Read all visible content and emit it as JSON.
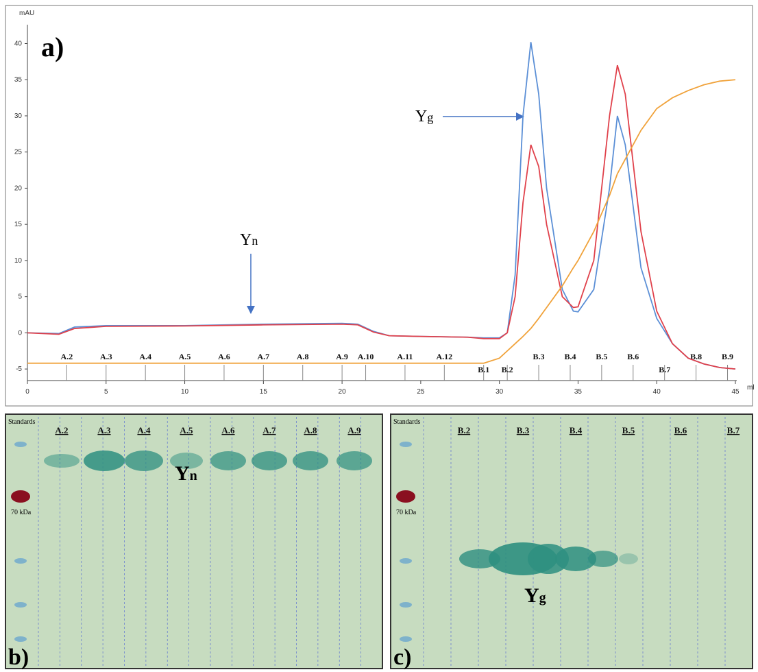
{
  "chart_data": {
    "type": "line",
    "panel_label": "a)",
    "y_unit": "mAU",
    "x_unit": "ml",
    "x": [
      0,
      2,
      3,
      5,
      10,
      15,
      20,
      21,
      22,
      23,
      25,
      28,
      29,
      30,
      30.5,
      31,
      31.5,
      32,
      32.5,
      33,
      34,
      34.7,
      35,
      36,
      37,
      37.5,
      38,
      39,
      40,
      41,
      42,
      43,
      44,
      45
    ],
    "series": [
      {
        "color": "#5b8fd6",
        "values": [
          0,
          -0.1,
          0.8,
          1,
          1,
          1.2,
          1.3,
          1.2,
          0.2,
          -0.4,
          -0.5,
          -0.6,
          -0.7,
          -0.7,
          0,
          8,
          30,
          40.2,
          33,
          20,
          6,
          3,
          2.9,
          6,
          20,
          30,
          26,
          9,
          2,
          -1.5,
          -3.5,
          -4.3,
          -4.8,
          -5
        ]
      },
      {
        "color": "#e0414b",
        "values": [
          0,
          -0.2,
          0.6,
          0.9,
          0.95,
          1.1,
          1.2,
          1.1,
          0.1,
          -0.4,
          -0.5,
          -0.6,
          -0.8,
          -0.8,
          0,
          5,
          18,
          26,
          23,
          15,
          5,
          3.5,
          3.6,
          10,
          30,
          37,
          33,
          14,
          3,
          -1.5,
          -3.5,
          -4.3,
          -4.8,
          -5
        ]
      },
      {
        "color": "#f0a23a",
        "values": [
          -4.2,
          -4.2,
          -4.2,
          -4.2,
          -4.2,
          -4.2,
          -4.2,
          -4.2,
          -4.2,
          -4.2,
          -4.2,
          -4.2,
          -4.2,
          -3.5,
          -2.5,
          -1.5,
          -0.5,
          0.6,
          2,
          3.5,
          6.5,
          9,
          10,
          14,
          19,
          22,
          24,
          28,
          31,
          32.5,
          33.5,
          34.3,
          34.8,
          35
        ]
      }
    ],
    "xlim": [
      0,
      45
    ],
    "xticks": [
      0,
      5,
      10,
      15,
      20,
      25,
      30,
      35,
      40,
      45
    ],
    "ylim": [
      -6.6,
      42.7
    ],
    "yticks": [
      -5,
      0,
      5,
      10,
      15,
      20,
      25,
      30,
      35,
      40
    ],
    "fractions": [
      {
        "label": "A.2",
        "x": 2.5
      },
      {
        "label": "A.3",
        "x": 5
      },
      {
        "label": "A.4",
        "x": 7.5
      },
      {
        "label": "A.5",
        "x": 10
      },
      {
        "label": "A.6",
        "x": 12.5
      },
      {
        "label": "A.7",
        "x": 15
      },
      {
        "label": "A.8",
        "x": 17.5
      },
      {
        "label": "A.9",
        "x": 20
      },
      {
        "label": "A.10",
        "x": 21.5
      },
      {
        "label": "A.11",
        "x": 24
      },
      {
        "label": "A.12",
        "x": 26.5
      },
      {
        "label": "B.1",
        "x": 29
      },
      {
        "label": "B.2",
        "x": 30.5
      },
      {
        "label": "B.3",
        "x": 32.5
      },
      {
        "label": "B.4",
        "x": 34.5
      },
      {
        "label": "B.5",
        "x": 36.5
      },
      {
        "label": "B.6",
        "x": 38.5
      },
      {
        "label": "B.7",
        "x": 40.5
      },
      {
        "label": "B.8",
        "x": 42.5
      },
      {
        "label": "B.9",
        "x": 44.5
      }
    ],
    "annotations": [
      {
        "text": "Y",
        "sub": "n"
      },
      {
        "text": "Y",
        "sub": "g"
      }
    ]
  },
  "gel_b": {
    "panel_label": "b)",
    "standards": "Standards",
    "marker": "70 kDa",
    "lanes": [
      "A.2",
      "A.3",
      "A.4",
      "A.5",
      "A.6",
      "A.7",
      "A.8",
      "A.9"
    ],
    "band": {
      "text": "Y",
      "sub": "n"
    }
  },
  "gel_c": {
    "panel_label": "c)",
    "standards": "Standards",
    "marker": "70 kDa",
    "lanes": [
      "B.2",
      "B.3",
      "B.4",
      "B.5",
      "B.6",
      "B.7"
    ],
    "band": {
      "text": "Y",
      "sub": "g"
    }
  }
}
